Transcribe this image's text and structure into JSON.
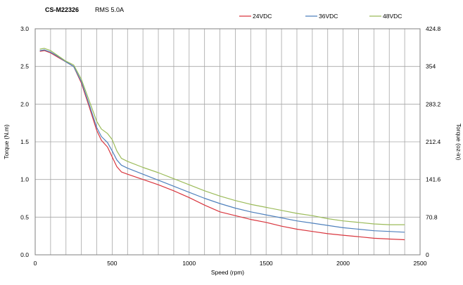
{
  "header": {
    "model": "CS-M22326",
    "rms": "RMS 5.0A"
  },
  "chart_data": {
    "type": "line",
    "xlabel": "Speed (rpm)",
    "ylabel": "Torque (N.m)",
    "y2label": "Torque (oz-in)",
    "xlim": [
      0,
      2500
    ],
    "ylim": [
      0,
      3.0
    ],
    "y2lim": [
      0,
      424.8
    ],
    "x_ticks": [
      "0",
      "500",
      "1000",
      "1500",
      "2000",
      "2500"
    ],
    "y_ticks": [
      "0.0",
      "0.5",
      "1.0",
      "1.5",
      "2.0",
      "2.5",
      "3.0"
    ],
    "y2_ticks": [
      "0",
      "70.8",
      "141.6",
      "212.4",
      "283.2",
      "354",
      "424.8"
    ],
    "x_grid_step": 100,
    "grid": true,
    "legend_position": "top",
    "series": [
      {
        "name": "24VDC",
        "color": "#d9363e",
        "x": [
          30,
          60,
          100,
          150,
          200,
          250,
          300,
          350,
          400,
          430,
          470,
          500,
          530,
          560,
          600,
          700,
          800,
          900,
          1000,
          1100,
          1200,
          1300,
          1400,
          1500,
          1600,
          1700,
          1800,
          1900,
          2000,
          2100,
          2200,
          2300,
          2400
        ],
        "values": [
          2.7,
          2.71,
          2.68,
          2.62,
          2.56,
          2.5,
          2.28,
          1.97,
          1.65,
          1.52,
          1.43,
          1.3,
          1.17,
          1.1,
          1.07,
          1.0,
          0.93,
          0.85,
          0.76,
          0.66,
          0.57,
          0.52,
          0.47,
          0.43,
          0.38,
          0.34,
          0.31,
          0.28,
          0.26,
          0.24,
          0.22,
          0.21,
          0.2
        ]
      },
      {
        "name": "36VDC",
        "color": "#4f81bd",
        "x": [
          30,
          60,
          100,
          150,
          200,
          250,
          300,
          350,
          400,
          430,
          470,
          500,
          530,
          560,
          600,
          700,
          800,
          900,
          1000,
          1100,
          1200,
          1300,
          1400,
          1500,
          1600,
          1700,
          1800,
          1900,
          2000,
          2100,
          2200,
          2300,
          2400
        ],
        "values": [
          2.71,
          2.72,
          2.69,
          2.63,
          2.56,
          2.5,
          2.3,
          2.0,
          1.69,
          1.57,
          1.49,
          1.38,
          1.26,
          1.19,
          1.15,
          1.07,
          0.99,
          0.91,
          0.83,
          0.75,
          0.68,
          0.62,
          0.57,
          0.53,
          0.49,
          0.45,
          0.42,
          0.39,
          0.36,
          0.34,
          0.32,
          0.31,
          0.3
        ]
      },
      {
        "name": "48VDC",
        "color": "#9bbb59",
        "x": [
          30,
          60,
          100,
          150,
          200,
          250,
          300,
          350,
          400,
          430,
          470,
          500,
          530,
          560,
          600,
          700,
          800,
          900,
          1000,
          1100,
          1200,
          1300,
          1400,
          1500,
          1600,
          1700,
          1800,
          1900,
          2000,
          2100,
          2200,
          2300,
          2400
        ],
        "values": [
          2.73,
          2.74,
          2.71,
          2.64,
          2.57,
          2.52,
          2.33,
          2.05,
          1.77,
          1.67,
          1.61,
          1.53,
          1.38,
          1.28,
          1.24,
          1.16,
          1.09,
          1.01,
          0.93,
          0.85,
          0.78,
          0.72,
          0.67,
          0.63,
          0.59,
          0.55,
          0.52,
          0.48,
          0.45,
          0.43,
          0.41,
          0.4,
          0.4
        ]
      }
    ]
  }
}
